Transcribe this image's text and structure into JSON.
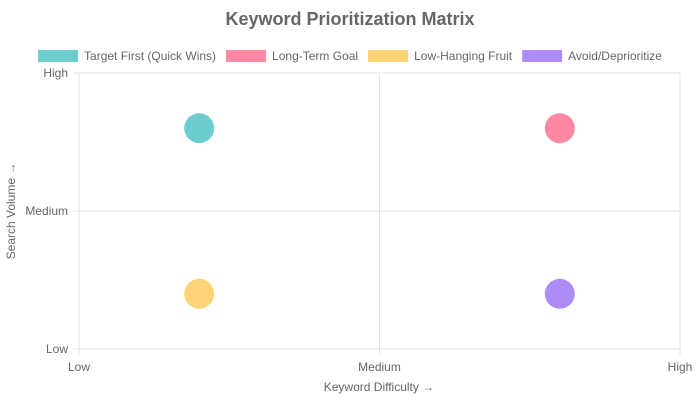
{
  "chart_data": {
    "type": "scatter",
    "title": "Keyword Prioritization Matrix",
    "xlabel": "Keyword Difficulty →",
    "ylabel": "Search Volume →",
    "xlim": [
      0,
      100
    ],
    "ylim": [
      0,
      100
    ],
    "x_ticks": [
      {
        "value": 0,
        "label": "Low"
      },
      {
        "value": 50,
        "label": "Medium"
      },
      {
        "value": 100,
        "label": "High"
      }
    ],
    "y_ticks": [
      {
        "value": 0,
        "label": "Low"
      },
      {
        "value": 50,
        "label": "Medium"
      },
      {
        "value": 100,
        "label": "High"
      }
    ],
    "grid": true,
    "legend_position": "top",
    "series": [
      {
        "name": "Target First (Quick Wins)",
        "color": "#6dcdcd",
        "points": [
          {
            "x": 20,
            "y": 80
          }
        ]
      },
      {
        "name": "Long-Term Goal",
        "color": "#fe87a1",
        "points": [
          {
            "x": 80,
            "y": 80
          }
        ]
      },
      {
        "name": "Low-Hanging Fruit",
        "color": "#fed576",
        "points": [
          {
            "x": 20,
            "y": 20
          }
        ]
      },
      {
        "name": "Avoid/Deprioritize",
        "color": "#ad8cf5",
        "points": [
          {
            "x": 80,
            "y": 20
          }
        ]
      }
    ]
  }
}
